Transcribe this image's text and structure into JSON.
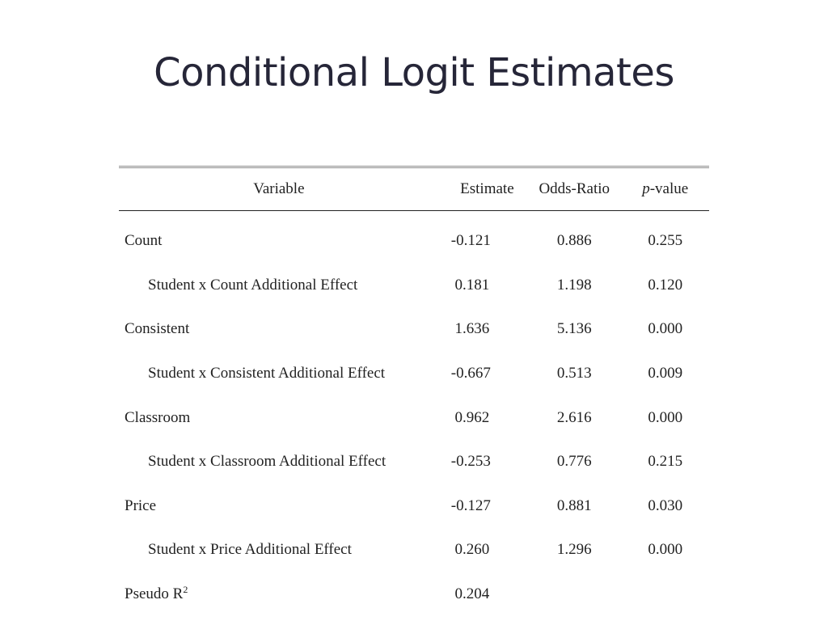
{
  "title": "Conditional Logit Estimates",
  "table": {
    "headers": {
      "variable": "Variable",
      "estimate": "Estimate",
      "odds_ratio": "Odds-Ratio",
      "p_italic": "p",
      "p_rest": "-value"
    },
    "rows": [
      {
        "label": "Count",
        "indent": false,
        "estimate": "-0.121",
        "odds_ratio": "0.886",
        "p_value": "0.255"
      },
      {
        "label": "Student x Count Additional Effect",
        "indent": true,
        "estimate": " 0.181",
        "odds_ratio": "1.198",
        "p_value": "0.120"
      },
      {
        "label": "Consistent",
        "indent": false,
        "estimate": " 1.636",
        "odds_ratio": "5.136",
        "p_value": "0.000"
      },
      {
        "label": "Student x Consistent Additional Effect",
        "indent": true,
        "estimate": "-0.667",
        "odds_ratio": "0.513",
        "p_value": "0.009"
      },
      {
        "label": "Classroom",
        "indent": false,
        "estimate": " 0.962",
        "odds_ratio": "2.616",
        "p_value": "0.000"
      },
      {
        "label": "Student x Classroom Additional Effect",
        "indent": true,
        "estimate": "-0.253",
        "odds_ratio": "0.776",
        "p_value": "0.215"
      },
      {
        "label": "Price",
        "indent": false,
        "estimate": "-0.127",
        "odds_ratio": "0.881",
        "p_value": "0.030"
      },
      {
        "label": "Student x Price Additional Effect",
        "indent": true,
        "estimate": " 0.260",
        "odds_ratio": "1.296",
        "p_value": "0.000"
      }
    ],
    "pseudo_r2": {
      "label": "Pseudo R",
      "superscript": "2",
      "estimate": " 0.204"
    }
  }
}
